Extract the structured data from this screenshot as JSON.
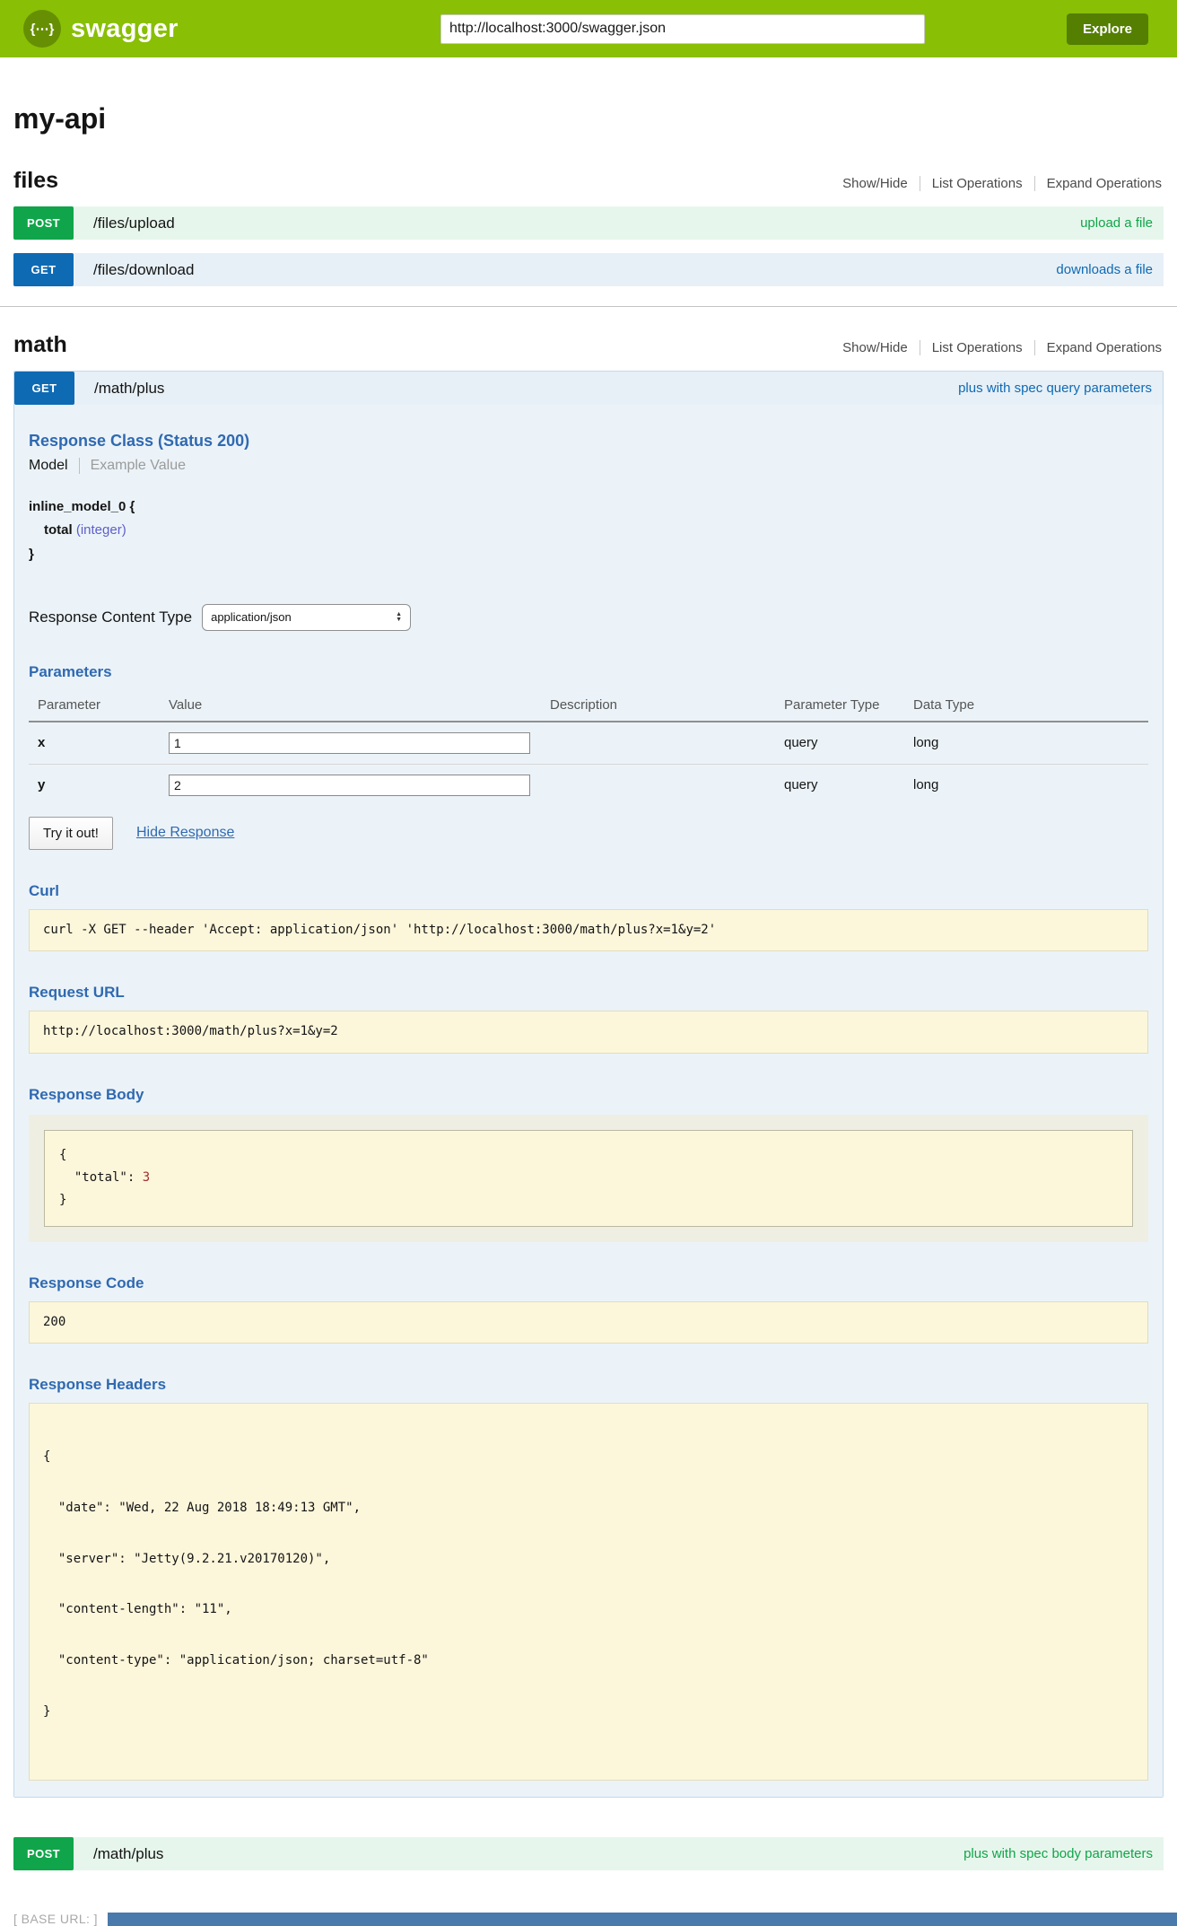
{
  "header": {
    "logo_glyph": "{⋯}",
    "brand": "swagger",
    "url_input": "http://localhost:3000/swagger.json",
    "explore_button": "Explore"
  },
  "page": {
    "title": "my-api",
    "base_url": "[ BASE URL: ]"
  },
  "section_controls": {
    "show_hide": "Show/Hide",
    "list_operations": "List Operations",
    "expand_operations": "Expand Operations"
  },
  "files_section": {
    "title": "files",
    "upload": {
      "method": "POST",
      "path": "/files/upload",
      "summary": "upload a file"
    },
    "download": {
      "method": "GET",
      "path": "/files/download",
      "summary": "downloads a file"
    }
  },
  "math_section": {
    "title": "math",
    "get_plus": {
      "method": "GET",
      "path": "/math/plus",
      "summary": "plus with spec query parameters",
      "response_class": {
        "heading": "Response Class (Status 200)",
        "model_tab": "Model",
        "example_tab": "Example Value",
        "model_name": "inline_model_0 {",
        "property_name": "total",
        "property_type": "(integer)",
        "close_brace": "}"
      },
      "response_content_type": {
        "label": "Response Content Type",
        "value": "application/json"
      },
      "parameters": {
        "heading": "Parameters",
        "columns": [
          "Parameter",
          "Value",
          "Description",
          "Parameter Type",
          "Data Type"
        ],
        "rows": [
          {
            "name": "x",
            "value": "1",
            "description": "",
            "param_type": "query",
            "data_type": "long"
          },
          {
            "name": "y",
            "value": "2",
            "description": "",
            "param_type": "query",
            "data_type": "long"
          }
        ]
      },
      "try_it_out_label": "Try it out!",
      "hide_response_label": "Hide Response",
      "curl": {
        "heading": "Curl",
        "command": "curl -X GET --header 'Accept: application/json' 'http://localhost:3000/math/plus?x=1&y=2'"
      },
      "request_url": {
        "heading": "Request URL",
        "value": "http://localhost:3000/math/plus?x=1&y=2"
      },
      "response_body": {
        "heading": "Response Body",
        "brace_open": "{",
        "key_part": "  \"total\": ",
        "value": "3",
        "brace_close": "}"
      },
      "response_code": {
        "heading": "Response Code",
        "value": "200"
      },
      "response_headers": {
        "heading": "Response Headers",
        "lines": [
          "{",
          "  \"date\": \"Wed, 22 Aug 2018 18:49:13 GMT\",",
          "  \"server\": \"Jetty(9.2.21.v20170120)\",",
          "  \"content-length\": \"11\",",
          "  \"content-type\": \"application/json; charset=utf-8\"",
          "}"
        ]
      }
    },
    "post_plus": {
      "method": "POST",
      "path": "/math/plus",
      "summary": "plus with spec body parameters"
    }
  },
  "colors": {
    "header_green": "#89bf04",
    "explore_green": "#547f00",
    "get_blue": "#0f6ab4",
    "post_green": "#10a54a",
    "get_row_bg": "#e7f0f7",
    "post_row_bg": "#e7f6ec",
    "panel_bg": "#ebf3f8",
    "code_box_bg": "#fcf6db",
    "heading_blue": "#3069b1",
    "json_number_red": "#a0302f"
  }
}
